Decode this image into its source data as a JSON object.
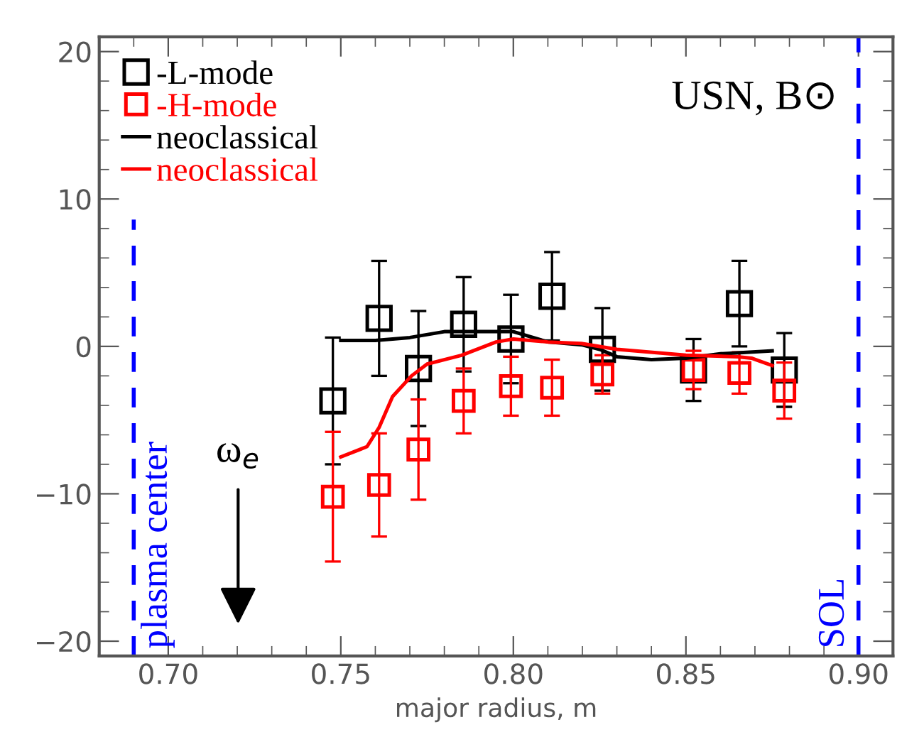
{
  "chart_data": {
    "type": "scatter",
    "xlabel": "major radius, m",
    "xlim": [
      0.68,
      0.91
    ],
    "ylim": [
      -21,
      21
    ],
    "xticks": [
      {
        "value": 0.7,
        "label": "0.70"
      },
      0.75,
      {
        "value": 0.8,
        "label": "0.80"
      },
      0.85,
      {
        "value": 0.9,
        "label": "0.90"
      }
    ],
    "yticks": [
      -20,
      -10,
      0,
      10,
      20
    ],
    "grid": false,
    "legend": "top left",
    "annotations": [
      "USN, B⊙",
      "ω$_{e}$"
    ],
    "ref_lines": [
      {
        "axis": "x",
        "value": 0.69,
        "label": "plasma center",
        "color": "#0000ff",
        "line_style": "dashed"
      },
      {
        "axis": "x",
        "value": 0.9,
        "label": "SOL",
        "color": "#0000ff",
        "line_style": "dashed"
      }
    ],
    "series": [
      {
        "name": "-L-mode",
        "marker": "square",
        "color": "#000000",
        "x": [
          0.7477,
          0.7611,
          0.7725,
          0.7856,
          0.7993,
          0.8112,
          0.8258,
          0.8522,
          0.8655,
          0.8785
        ],
        "values": [
          -3.7,
          1.9,
          -1.5,
          1.5,
          0.5,
          3.4,
          -0.2,
          -1.6,
          2.9,
          -1.6
        ],
        "errors": [
          4.3,
          3.9,
          3.9,
          3.2,
          3.0,
          3.0,
          2.8,
          2.1,
          2.9,
          2.5
        ]
      },
      {
        "name": "-H-mode",
        "marker": "square",
        "color": "#ff0000",
        "x": [
          0.7477,
          0.7611,
          0.7725,
          0.7856,
          0.7993,
          0.8112,
          0.8258,
          0.8522,
          0.8655,
          0.8785
        ],
        "values": [
          -10.2,
          -9.4,
          -7.0,
          -3.7,
          -2.7,
          -2.8,
          -1.9,
          -1.6,
          -1.8,
          -3.0
        ],
        "errors": [
          4.4,
          3.5,
          3.4,
          2.2,
          2.0,
          1.9,
          1.3,
          1.3,
          1.4,
          1.9
        ]
      },
      {
        "name": "neoclassical",
        "type": "line",
        "marker": "none",
        "color": "#000000",
        "x": [
          0.75,
          0.76,
          0.77,
          0.78,
          0.79,
          0.8,
          0.81,
          0.82,
          0.825,
          0.83,
          0.84,
          0.85,
          0.86,
          0.875
        ],
        "values": [
          0.4,
          0.4,
          0.6,
          1.0,
          1.0,
          1.0,
          0.3,
          0.1,
          -0.2,
          -0.7,
          -0.9,
          -0.8,
          -0.5,
          -0.3
        ]
      },
      {
        "name": "neoclassical",
        "type": "line",
        "marker": "none",
        "color": "#ff0000",
        "x": [
          0.75,
          0.7576,
          0.7611,
          0.765,
          0.7705,
          0.775,
          0.785,
          0.795,
          0.8,
          0.81,
          0.8197,
          0.83,
          0.85,
          0.865,
          0.869,
          0.875
        ],
        "values": [
          -7.5,
          -6.8,
          -5.5,
          -3.4,
          -2.0,
          -1.2,
          -0.6,
          0.3,
          0.5,
          0.3,
          0.2,
          -0.2,
          -0.6,
          -0.7,
          -0.8,
          -1.3
        ]
      }
    ]
  }
}
